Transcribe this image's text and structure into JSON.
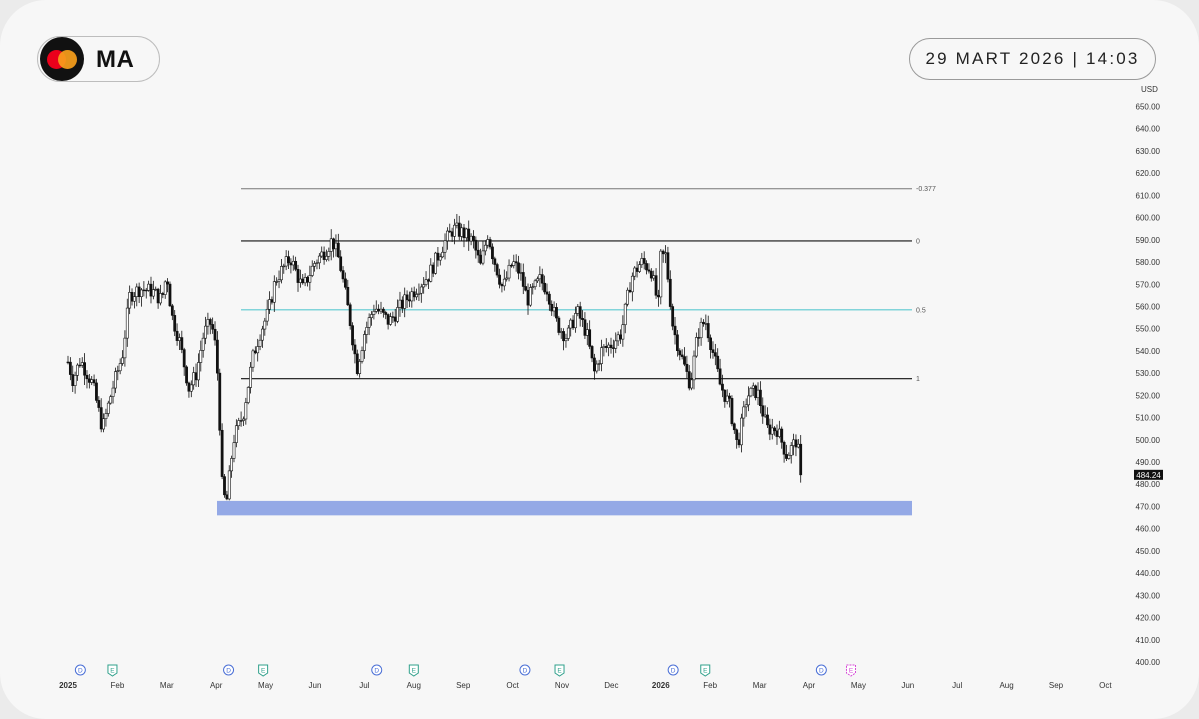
{
  "header": {
    "ticker": "MA",
    "datetime": "29 MART 2026 | 14:03",
    "logo_icon": "mastercard-logo-icon"
  },
  "colors": {
    "background": "#f7f7f7",
    "candle": "#111111",
    "fib_line": "#111111",
    "fib_top_line": "#777777",
    "fib_mid_line": "#5bc8d0",
    "support_zone": "#94a9e6",
    "dividend_marker": "#4a6fd6",
    "earnings_marker": "#2fa08b",
    "earnings_upcoming": "#d64ad6"
  },
  "chart_data": {
    "type": "candlestick",
    "currency": "USD",
    "y_range": [
      400,
      650
    ],
    "y_ticks": [
      "650.00",
      "640.00",
      "630.00",
      "620.00",
      "610.00",
      "600.00",
      "590.00",
      "580.00",
      "570.00",
      "560.00",
      "550.00",
      "540.00",
      "530.00",
      "520.00",
      "510.00",
      "500.00",
      "490.00",
      "480.00",
      "470.00",
      "460.00",
      "450.00",
      "440.00",
      "430.00",
      "420.00",
      "410.00",
      "400.00"
    ],
    "last_price": "484.24",
    "x_ticks": [
      {
        "label": "2025",
        "bold": true
      },
      {
        "label": "Feb"
      },
      {
        "label": "Mar"
      },
      {
        "label": "Apr"
      },
      {
        "label": "May"
      },
      {
        "label": "Jun"
      },
      {
        "label": "Jul"
      },
      {
        "label": "Aug"
      },
      {
        "label": "Sep"
      },
      {
        "label": "Oct"
      },
      {
        "label": "Nov"
      },
      {
        "label": "Dec"
      },
      {
        "label": "2026",
        "bold": true
      },
      {
        "label": "Feb"
      },
      {
        "label": "Mar"
      },
      {
        "label": "Apr"
      },
      {
        "label": "May"
      },
      {
        "label": "Jun"
      },
      {
        "label": "Jul"
      },
      {
        "label": "Aug"
      },
      {
        "label": "Sep"
      },
      {
        "label": "Oct"
      }
    ],
    "fib_levels": [
      {
        "label": "-0.377",
        "price": 613
      },
      {
        "label": "0",
        "price": 589.5
      },
      {
        "label": "0.5",
        "price": 558.5
      },
      {
        "label": "1",
        "price": 527.5
      }
    ],
    "support_zone": {
      "from": 466,
      "to": 472.5
    },
    "event_markers": [
      {
        "type": "D",
        "month_index": 0.25
      },
      {
        "type": "E",
        "month_index": 0.9
      },
      {
        "type": "D",
        "month_index": 3.25
      },
      {
        "type": "E",
        "month_index": 3.95
      },
      {
        "type": "D",
        "month_index": 6.25
      },
      {
        "type": "E",
        "month_index": 7.0
      },
      {
        "type": "D",
        "month_index": 9.25
      },
      {
        "type": "E",
        "month_index": 9.95
      },
      {
        "type": "D",
        "month_index": 12.25
      },
      {
        "type": "E",
        "month_index": 12.9
      },
      {
        "type": "D",
        "month_index": 15.25
      },
      {
        "type": "E",
        "month_index": 15.85,
        "upcoming": true
      }
    ],
    "close_path": [
      [
        0.0,
        535
      ],
      [
        0.1,
        527
      ],
      [
        0.25,
        536
      ],
      [
        0.5,
        525
      ],
      [
        0.7,
        505
      ],
      [
        0.9,
        523
      ],
      [
        1.1,
        538
      ],
      [
        1.25,
        565
      ],
      [
        1.45,
        568
      ],
      [
        1.7,
        567
      ],
      [
        1.9,
        563
      ],
      [
        2.0,
        575
      ],
      [
        2.1,
        556
      ],
      [
        2.25,
        545
      ],
      [
        2.45,
        523
      ],
      [
        2.6,
        530
      ],
      [
        2.75,
        548
      ],
      [
        2.9,
        553
      ],
      [
        3.0,
        540
      ],
      [
        3.05,
        520
      ],
      [
        3.12,
        480
      ],
      [
        3.2,
        470
      ],
      [
        3.35,
        500
      ],
      [
        3.55,
        512
      ],
      [
        3.75,
        538
      ],
      [
        3.9,
        549
      ],
      [
        4.05,
        557
      ],
      [
        4.2,
        572
      ],
      [
        4.5,
        582
      ],
      [
        4.75,
        568
      ],
      [
        5.0,
        580
      ],
      [
        5.2,
        585
      ],
      [
        5.35,
        590
      ],
      [
        5.5,
        580
      ],
      [
        5.7,
        555
      ],
      [
        5.85,
        532
      ],
      [
        6.0,
        548
      ],
      [
        6.2,
        560
      ],
      [
        6.5,
        553
      ],
      [
        6.8,
        562
      ],
      [
        7.0,
        567
      ],
      [
        7.3,
        574
      ],
      [
        7.6,
        588
      ],
      [
        7.8,
        595
      ],
      [
        8.0,
        593
      ],
      [
        8.2,
        589
      ],
      [
        8.35,
        578
      ],
      [
        8.5,
        593
      ],
      [
        8.6,
        583
      ],
      [
        8.8,
        568
      ],
      [
        9.0,
        580
      ],
      [
        9.15,
        575
      ],
      [
        9.3,
        563
      ],
      [
        9.55,
        572
      ],
      [
        9.7,
        568
      ],
      [
        9.9,
        552
      ],
      [
        10.1,
        546
      ],
      [
        10.3,
        558
      ],
      [
        10.5,
        548
      ],
      [
        10.65,
        530
      ],
      [
        10.8,
        540
      ],
      [
        11.0,
        543
      ],
      [
        11.2,
        548
      ],
      [
        11.4,
        573
      ],
      [
        11.6,
        580
      ],
      [
        11.8,
        577
      ],
      [
        11.95,
        560
      ],
      [
        12.0,
        582
      ],
      [
        12.1,
        583
      ],
      [
        12.25,
        550
      ],
      [
        12.45,
        535
      ],
      [
        12.6,
        525
      ],
      [
        12.75,
        548
      ],
      [
        12.9,
        554
      ],
      [
        13.05,
        540
      ],
      [
        13.2,
        525
      ],
      [
        13.4,
        515
      ],
      [
        13.55,
        497
      ],
      [
        13.75,
        520
      ],
      [
        13.95,
        522
      ],
      [
        14.15,
        505
      ],
      [
        14.35,
        505
      ],
      [
        14.55,
        493
      ],
      [
        14.75,
        500
      ],
      [
        14.85,
        484.24
      ]
    ]
  }
}
